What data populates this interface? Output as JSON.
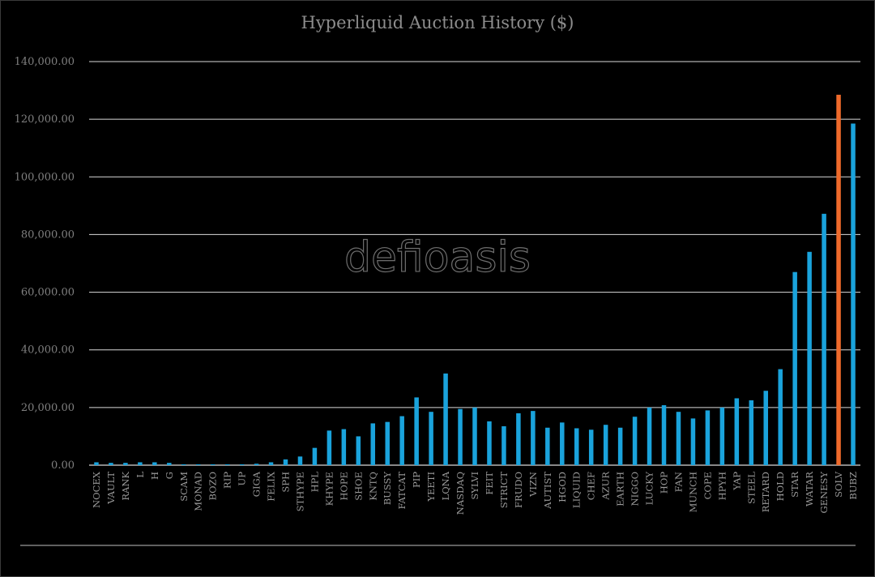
{
  "chart_data": {
    "type": "bar",
    "title": "Hyperliquid Auction History ($)",
    "watermark": "defioasis",
    "xlabel": "",
    "ylabel": "",
    "ylim": [
      0,
      140000
    ],
    "ytick_values": [
      0,
      20000,
      40000,
      60000,
      80000,
      100000,
      120000,
      140000
    ],
    "ytick_labels": [
      "0.00",
      "20,000.00",
      "40,000.00",
      "60,000.00",
      "80,000.00",
      "100,000.00",
      "120,000.00",
      "140,000.00"
    ],
    "grid": true,
    "legend": "none",
    "colors": {
      "default": "#1aa3dc",
      "highlight": "#ef6a2b",
      "background": "#000000"
    },
    "highlight_category": "SOLV",
    "categories": [
      "NOCEX",
      "VAULT",
      "RANK",
      "L",
      "H",
      "G",
      "SCAM",
      "MONAD",
      "BOZO",
      "RIP",
      "UP",
      "GIGA",
      "FELIX",
      "SPH",
      "STHYPE",
      "HPL",
      "KHYPE",
      "HOPE",
      "SHOE",
      "KNTQ",
      "BUSSY",
      "FATCAT",
      "PIP",
      "YEETI",
      "LQNA",
      "NASDAQ",
      "SYLVI",
      "FEIT",
      "STRICT",
      "FRUDO",
      "VIZN",
      "AUTIST",
      "HGOD",
      "LIQUID",
      "CHEF",
      "AZUR",
      "EARTH",
      "NIGGO",
      "LUCKY",
      "HOP",
      "FAN",
      "MUNCH",
      "COPE",
      "HPYH",
      "YAP",
      "STEEL",
      "RETARD",
      "HOLD",
      "STAR",
      "WATAR",
      "GENESY",
      "SOLV",
      "BUBZ"
    ],
    "values": [
      1000,
      800,
      800,
      1000,
      1000,
      800,
      300,
      300,
      300,
      300,
      300,
      500,
      1000,
      2000,
      3000,
      6000,
      12000,
      12500,
      10000,
      14500,
      15000,
      17000,
      23500,
      18500,
      31800,
      19500,
      20000,
      15200,
      13500,
      18000,
      18800,
      13000,
      14800,
      12800,
      12300,
      14000,
      13000,
      16800,
      20000,
      20800,
      18500,
      16200,
      19000,
      20000,
      23200,
      22500,
      25800,
      33300,
      67000,
      74000,
      87200,
      128500,
      118500
    ]
  }
}
